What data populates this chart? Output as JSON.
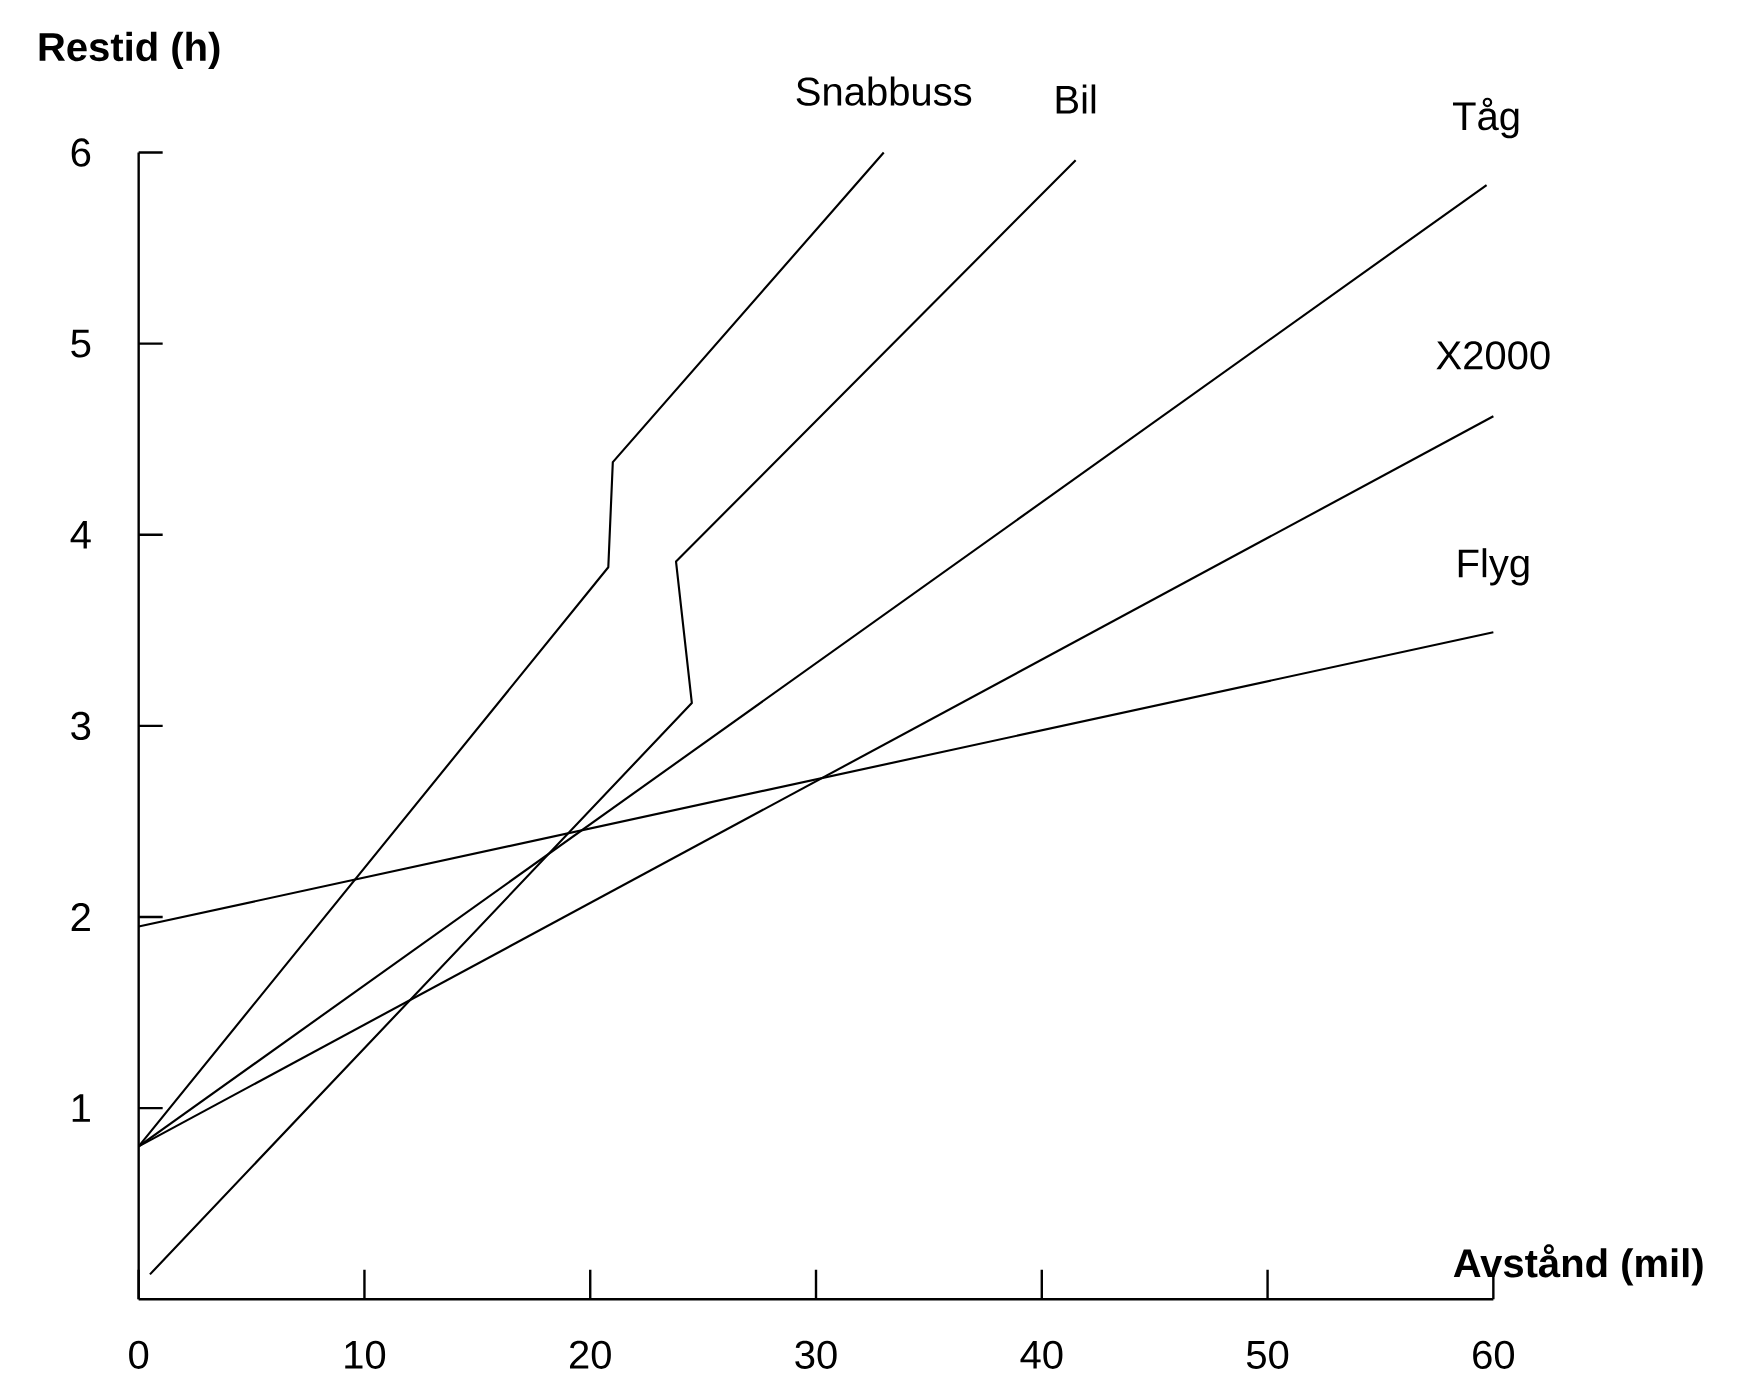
{
  "chart_data": {
    "type": "line",
    "xlabel": "Avstånd (mil)",
    "ylabel": "Restid (h)",
    "xlim": [
      0,
      60
    ],
    "ylim": [
      0,
      6
    ],
    "xticks": [
      0,
      10,
      20,
      30,
      40,
      50,
      60
    ],
    "yticks": [
      1,
      2,
      3,
      4,
      5,
      6
    ],
    "legend": false,
    "series": [
      {
        "name": "Snabbuss",
        "color": "#000000",
        "x": [
          0,
          20.8,
          21.0,
          33.0
        ],
        "values": [
          0.8,
          3.83,
          4.38,
          6.0
        ]
      },
      {
        "name": "Bil",
        "color": "#000000",
        "x": [
          0.5,
          24.5,
          23.8,
          41.5
        ],
        "values": [
          0.13,
          3.12,
          3.86,
          5.96
        ]
      },
      {
        "name": "Tåg",
        "color": "#000000",
        "x": [
          0,
          59.7
        ],
        "values": [
          0.8,
          5.83
        ]
      },
      {
        "name": "X2000",
        "color": "#000000",
        "x": [
          0,
          60
        ],
        "values": [
          0.8,
          4.62
        ]
      },
      {
        "name": "Flyg",
        "color": "#000000",
        "x": [
          0,
          60
        ],
        "values": [
          1.95,
          3.49
        ]
      }
    ]
  }
}
